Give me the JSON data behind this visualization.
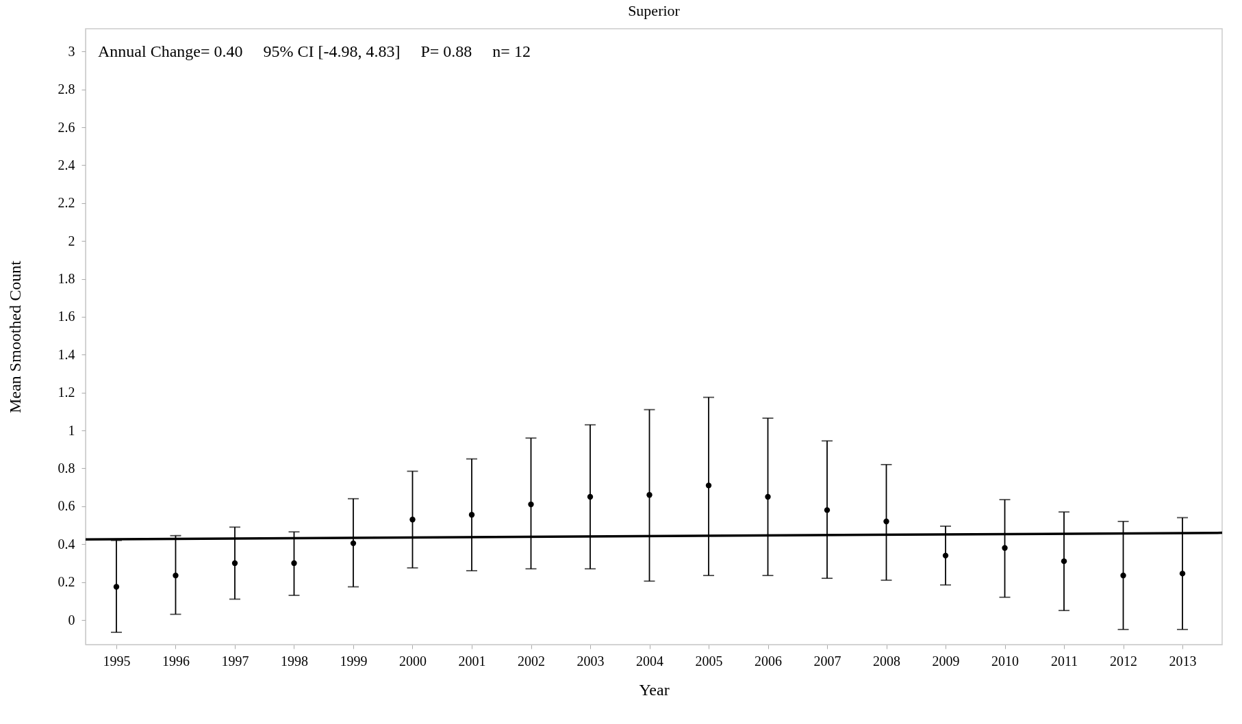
{
  "chart_data": {
    "type": "scatter",
    "title": "Superior",
    "xlabel": "Year",
    "ylabel": "Mean Smoothed Count",
    "annotations": [
      "Annual Change= 0.40   95% CI [-4.98, 4.83]   P= 0.88   n= 12"
    ],
    "xlim": [
      1994.48,
      2013.67
    ],
    "xticks": [
      1995,
      1996,
      1997,
      1998,
      1999,
      2000,
      2001,
      2002,
      2003,
      2004,
      2005,
      2006,
      2007,
      2008,
      2009,
      2010,
      2011,
      2012,
      2013
    ],
    "ylim": [
      -0.13,
      3.12
    ],
    "yticks": [
      0,
      0.2,
      0.4,
      0.6,
      0.8,
      1,
      1.2,
      1.4,
      1.6,
      1.8,
      2,
      2.2,
      2.4,
      2.6,
      2.8,
      3
    ],
    "grid": false,
    "series": [
      {
        "marker": "circle",
        "color": "#000000",
        "x": [
          1995,
          1996,
          1997,
          1998,
          1999,
          2000,
          2001,
          2002,
          2003,
          2004,
          2005,
          2006,
          2007,
          2008,
          2009,
          2010,
          2011,
          2012,
          2013
        ],
        "values": [
          0.175,
          0.235,
          0.3,
          0.3,
          0.405,
          0.53,
          0.555,
          0.61,
          0.65,
          0.66,
          0.71,
          0.65,
          0.58,
          0.52,
          0.34,
          0.38,
          0.31,
          0.235,
          0.245
        ],
        "errors": [
          [
            -0.065,
            0.42
          ],
          [
            0.03,
            0.445
          ],
          [
            0.11,
            0.49
          ],
          [
            0.13,
            0.465
          ],
          [
            0.175,
            0.64
          ],
          [
            0.275,
            0.785
          ],
          [
            0.26,
            0.85
          ],
          [
            0.27,
            0.96
          ],
          [
            0.27,
            1.03
          ],
          [
            0.205,
            1.11
          ],
          [
            0.235,
            1.175
          ],
          [
            0.235,
            1.065
          ],
          [
            0.22,
            0.945
          ],
          [
            0.21,
            0.82
          ],
          [
            0.185,
            0.495
          ],
          [
            0.12,
            0.635
          ],
          [
            0.05,
            0.57
          ],
          [
            -0.05,
            0.52
          ],
          [
            -0.05,
            0.54
          ]
        ]
      },
      {
        "type": "line",
        "color": "#000000",
        "x": [
          1994.48,
          2013.67
        ],
        "values": [
          0.425,
          0.46
        ],
        "line_style": "solid"
      }
    ]
  }
}
